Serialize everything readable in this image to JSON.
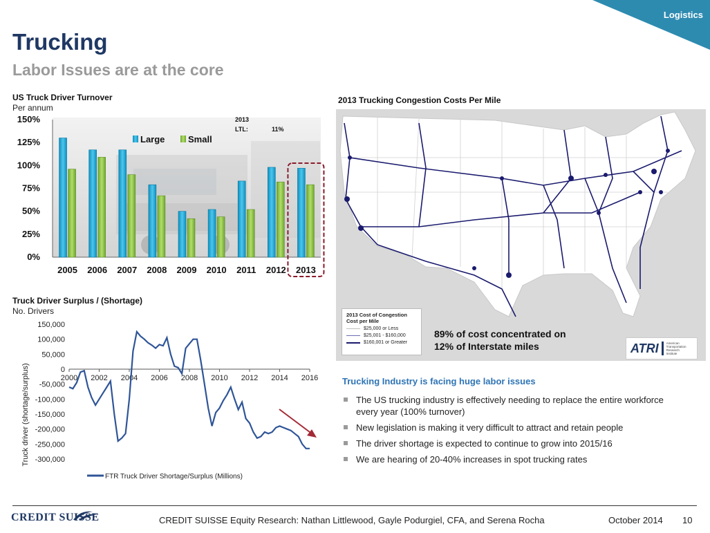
{
  "header": {
    "corner_tag": "Logistics",
    "title": "Trucking",
    "subtitle": "Labor Issues are at the core"
  },
  "turnover": {
    "title": "US Truck Driver Turnover",
    "subtitle": "Per annum",
    "ltl_year": "2013",
    "ltl_label": "LTL:",
    "ltl_value": "11%"
  },
  "surplus": {
    "title": "Truck Driver Surplus / (Shortage)",
    "subtitle": "No. Drivers"
  },
  "map": {
    "title": "2013 Trucking Congestion Costs Per Mile",
    "legend_title": "2013 Cost of Congestion",
    "legend_subtitle": "Cost per Mile",
    "legend_items": [
      "$25,000 or Less",
      "$25,001 - $160,000",
      "$160,001 or Greater"
    ],
    "note_line1": "89% of cost concentrated on",
    "note_line2": "12% of Interstate miles",
    "atri_word": "ATRI",
    "atri_line1": "American",
    "atri_line2": "Transportation",
    "atri_line3": "Research",
    "atri_line4": "Institute"
  },
  "industry": {
    "heading": "Trucking Industry is facing huge labor issues",
    "bullets": [
      "The US trucking industry is effectively needing to replace the entire workforce every year (100% turnover)",
      "New legislation is making it very difficult to attract and retain people",
      "The driver shortage is expected to continue to grow into 2015/16",
      "We are hearing of 20-40% increases in spot trucking rates"
    ]
  },
  "footer": {
    "logo": "CREDIT SUISSE",
    "text": "CREDIT SUISSE Equity Research: Nathan Littlewood, Gayle Podurgiel, CFA, and Serena Rocha",
    "date": "October 2014",
    "page": "10"
  },
  "colors": {
    "navy": "#1f3864",
    "teal": "#2e8bb0",
    "large_bar": "#17a9d8",
    "small_bar": "#8dc63f",
    "line": "#2f5597",
    "arrow": "#a32a36",
    "highlight": "#8b1a2b"
  },
  "chart_data": [
    {
      "type": "bar",
      "categories": [
        "2005",
        "2006",
        "2007",
        "2008",
        "2009",
        "2010",
        "2011",
        "2012",
        "2013"
      ],
      "series": [
        {
          "name": "Large",
          "values": [
            130,
            117,
            117,
            79,
            50,
            52,
            83,
            98,
            97
          ]
        },
        {
          "name": "Small",
          "values": [
            96,
            109,
            90,
            67,
            42,
            44,
            52,
            82,
            79
          ]
        }
      ],
      "ylim": [
        0,
        150
      ],
      "yticks": [
        "0%",
        "25%",
        "50%",
        "75%",
        "100%",
        "125%",
        "150%"
      ],
      "legend": "top-center",
      "highlight_category": "2013"
    },
    {
      "type": "line",
      "ylabel": "Truck driver (shortage/surplus)",
      "ylim": [
        -300000,
        150000
      ],
      "xlim": [
        2000,
        2016
      ],
      "yticks": [
        "150,000",
        "100,000",
        "50,000",
        "0",
        "-50,000",
        "-100,000",
        "-150,000",
        "-200,000",
        "-250,000",
        "-300,000"
      ],
      "xticks": [
        "2000",
        "2002",
        "2004",
        "2006",
        "2008",
        "2010",
        "2012",
        "2014",
        "2016"
      ],
      "series": [
        {
          "name": "FTR Truck Driver Shortage/Surplus (Millions)",
          "x": [
            2000,
            2000.25,
            2000.5,
            2000.75,
            2001,
            2001.25,
            2001.5,
            2001.75,
            2002,
            2002.25,
            2002.5,
            2002.75,
            2003,
            2003.25,
            2003.5,
            2003.75,
            2004,
            2004.25,
            2004.5,
            2004.75,
            2005,
            2005.25,
            2005.5,
            2005.75,
            2006,
            2006.25,
            2006.5,
            2006.75,
            2007,
            2007.25,
            2007.5,
            2007.75,
            2008,
            2008.25,
            2008.5,
            2008.75,
            2009,
            2009.25,
            2009.5,
            2009.75,
            2010,
            2010.25,
            2010.5,
            2010.75,
            2011,
            2011.25,
            2011.5,
            2011.75,
            2012,
            2012.25,
            2012.5,
            2012.75,
            2013,
            2013.25,
            2013.5,
            2013.75,
            2014,
            2014.25,
            2014.5,
            2014.75,
            2015,
            2015.25,
            2015.5,
            2015.75,
            2016
          ],
          "y": [
            -60000,
            -65000,
            -45000,
            -10000,
            -5000,
            -60000,
            -95000,
            -120000,
            -100000,
            -80000,
            -60000,
            -40000,
            -150000,
            -240000,
            -230000,
            -215000,
            -100000,
            60000,
            125000,
            110000,
            100000,
            88000,
            80000,
            70000,
            82000,
            78000,
            105000,
            50000,
            10000,
            5000,
            -15000,
            70000,
            85000,
            100000,
            100000,
            30000,
            -50000,
            -130000,
            -190000,
            -145000,
            -130000,
            -105000,
            -85000,
            -60000,
            -100000,
            -135000,
            -110000,
            -165000,
            -180000,
            -210000,
            -230000,
            -225000,
            -210000,
            -215000,
            -210000,
            -195000,
            -190000,
            -195000,
            -200000,
            -205000,
            -215000,
            -225000,
            -250000,
            -265000,
            -265000
          ]
        }
      ],
      "legend": "bottom"
    }
  ]
}
